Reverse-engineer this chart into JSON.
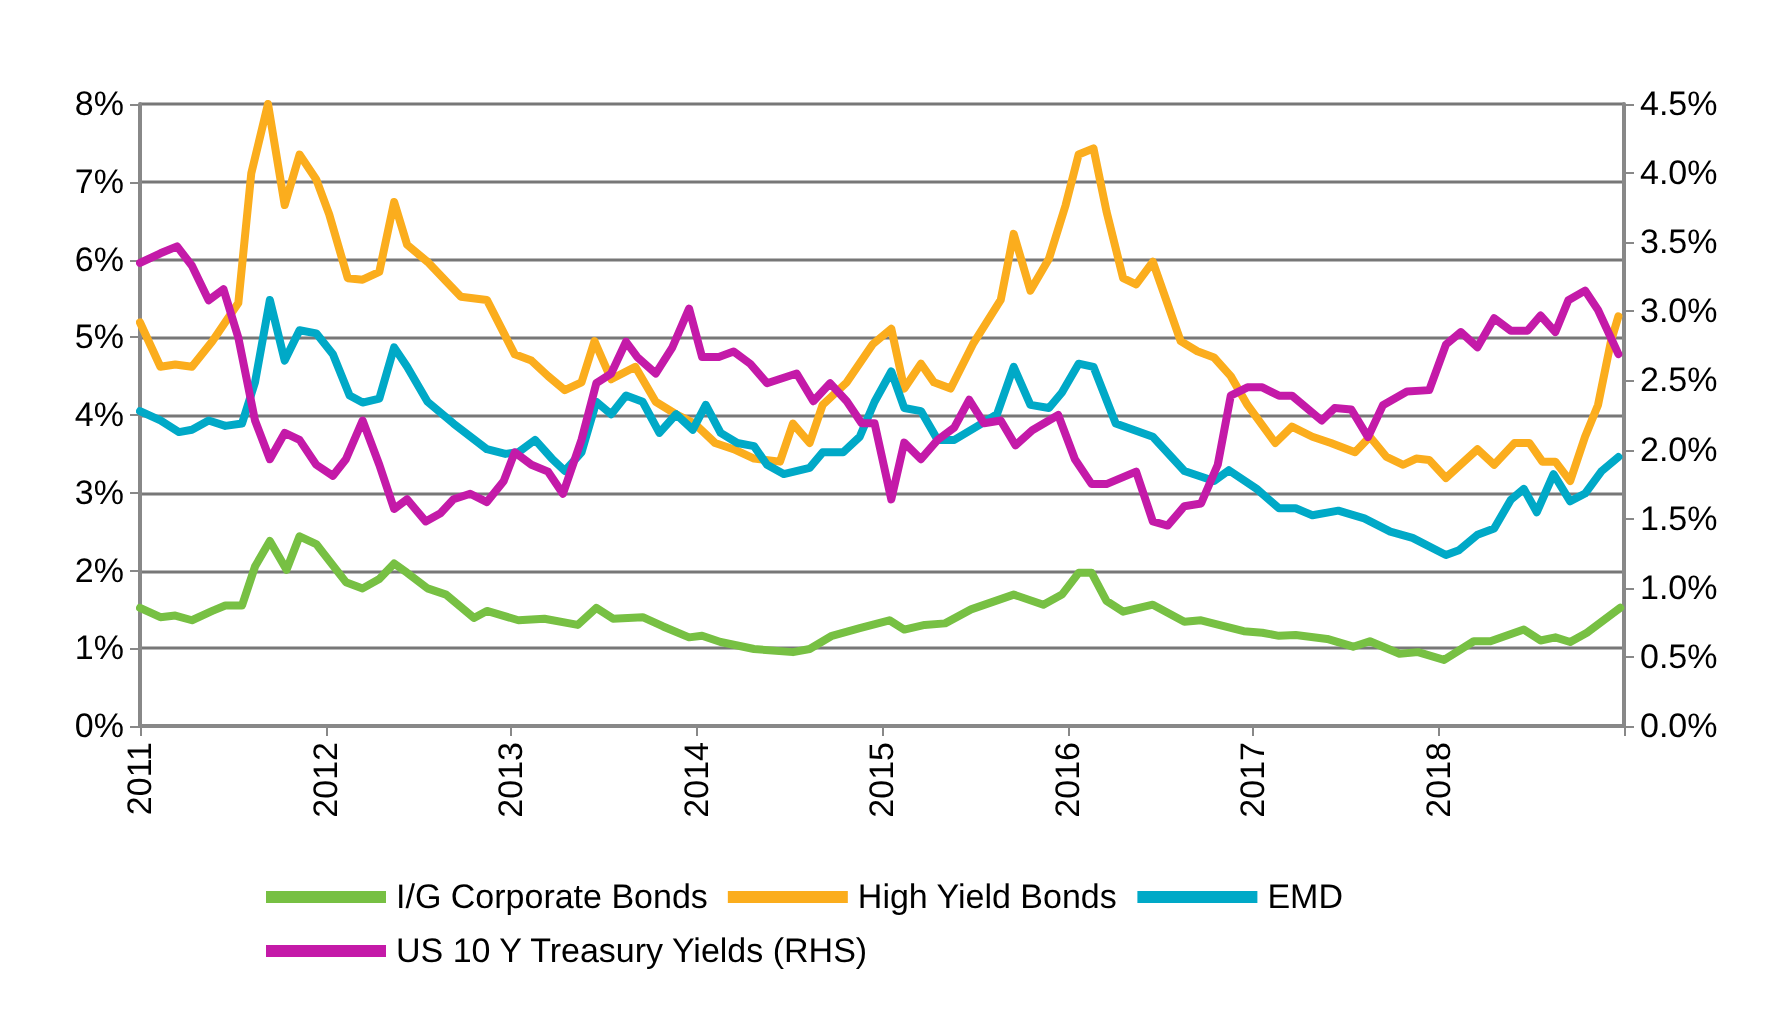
{
  "chart_data": {
    "type": "line",
    "xlim": [
      2011,
      2019
    ],
    "xticks": [
      2011,
      2012,
      2013,
      2014,
      2015,
      2016,
      2017,
      2018,
      {
        "value": 2019,
        "label": null
      }
    ],
    "ylim": [
      0,
      8
    ],
    "yticks": [
      {
        "value": 0,
        "label": "0%"
      },
      {
        "value": 1,
        "label": "1%"
      },
      {
        "value": 2,
        "label": "2%"
      },
      {
        "value": 3,
        "label": "3%"
      },
      {
        "value": 4,
        "label": "4%"
      },
      {
        "value": 5,
        "label": "5%"
      },
      {
        "value": 6,
        "label": "6%"
      },
      {
        "value": 7,
        "label": "7%"
      },
      {
        "value": 8,
        "label": "8%"
      }
    ],
    "y2lim": [
      0,
      4.5
    ],
    "y2ticks": [
      {
        "value": 0,
        "label": "0.0%"
      },
      {
        "value": 0.5,
        "label": "0.5%"
      },
      {
        "value": 1,
        "label": "1.0%"
      },
      {
        "value": 1.5,
        "label": "1.5%"
      },
      {
        "value": 2,
        "label": "2.0%"
      },
      {
        "value": 2.5,
        "label": "2.5%"
      },
      {
        "value": 3,
        "label": "3.0%"
      },
      {
        "value": 3.5,
        "label": "3.5%"
      },
      {
        "value": 4,
        "label": "4.0%"
      },
      {
        "value": 4.5,
        "label": "4.5%"
      }
    ],
    "grid": "y",
    "legend": "bottom",
    "line_style": "solid",
    "marker": "none",
    "series": [
      {
        "name": "I/G Corporate Bonds",
        "color": "#77c043",
        "x": [
          2011.0,
          2011.11,
          2011.19,
          2011.28,
          2011.39,
          2011.46,
          2011.55,
          2011.62,
          2011.7,
          2011.79,
          2011.86,
          2011.95,
          2012.11,
          2012.2,
          2012.29,
          2012.37,
          2012.44,
          2012.55,
          2012.65,
          2012.8,
          2012.87,
          2013.04,
          2013.18,
          2013.36,
          2013.46,
          2013.55,
          2013.71,
          2013.82,
          2013.96,
          2014.03,
          2014.13,
          2014.31,
          2014.52,
          2014.61,
          2014.73,
          2014.88,
          2015.04,
          2015.12,
          2015.23,
          2015.34,
          2015.48,
          2015.71,
          2015.87,
          2015.97,
          2016.06,
          2016.13,
          2016.21,
          2016.3,
          2016.46,
          2016.63,
          2016.72,
          2016.95,
          2017.05,
          2017.14,
          2017.23,
          2017.4,
          2017.54,
          2017.63,
          2017.79,
          2017.89,
          2018.03,
          2018.19,
          2018.28,
          2018.46,
          2018.55,
          2018.63,
          2018.71,
          2018.8,
          2018.89,
          2018.98
        ],
        "values": [
          1.52,
          1.4,
          1.42,
          1.36,
          1.48,
          1.55,
          1.55,
          2.05,
          2.38,
          2.01,
          2.44,
          2.34,
          1.85,
          1.77,
          1.89,
          2.09,
          1.97,
          1.77,
          1.69,
          1.39,
          1.48,
          1.36,
          1.38,
          1.3,
          1.52,
          1.38,
          1.4,
          1.28,
          1.14,
          1.16,
          1.08,
          0.99,
          0.95,
          0.99,
          1.16,
          1.26,
          1.36,
          1.24,
          1.3,
          1.32,
          1.5,
          1.69,
          1.56,
          1.69,
          1.97,
          1.97,
          1.61,
          1.47,
          1.56,
          1.34,
          1.36,
          1.22,
          1.2,
          1.16,
          1.17,
          1.12,
          1.02,
          1.09,
          0.93,
          0.95,
          0.85,
          1.09,
          1.09,
          1.24,
          1.1,
          1.14,
          1.08,
          1.2,
          1.36,
          1.52
        ]
      },
      {
        "name": "High Yield Bonds",
        "color": "#fbad1d",
        "x": [
          2011.0,
          2011.11,
          2011.19,
          2011.28,
          2011.39,
          2011.53,
          2011.6,
          2011.69,
          2011.78,
          2011.86,
          2011.95,
          2012.02,
          2012.12,
          2012.2,
          2012.29,
          2012.37,
          2012.44,
          2012.55,
          2012.65,
          2012.73,
          2012.87,
          2013.02,
          2013.11,
          2013.2,
          2013.29,
          2013.38,
          2013.45,
          2013.54,
          2013.67,
          2013.78,
          2013.89,
          2013.99,
          2014.1,
          2014.2,
          2014.31,
          2014.45,
          2014.52,
          2014.61,
          2014.68,
          2014.81,
          2014.95,
          2015.05,
          2015.12,
          2015.21,
          2015.28,
          2015.37,
          2015.49,
          2015.64,
          2015.71,
          2015.8,
          2015.9,
          2015.99,
          2016.06,
          2016.14,
          2016.21,
          2016.3,
          2016.37,
          2016.46,
          2016.61,
          2016.7,
          2016.79,
          2016.88,
          2016.97,
          2017.12,
          2017.21,
          2017.32,
          2017.42,
          2017.55,
          2017.63,
          2017.72,
          2017.81,
          2017.88,
          2017.95,
          2018.04,
          2018.21,
          2018.3,
          2018.41,
          2018.49,
          2018.56,
          2018.63,
          2018.71,
          2018.79,
          2018.86,
          2018.93,
          2018.97
        ],
        "values": [
          5.19,
          4.62,
          4.65,
          4.62,
          4.95,
          5.44,
          7.11,
          8.0,
          6.7,
          7.35,
          7.03,
          6.58,
          5.76,
          5.74,
          5.84,
          6.74,
          6.19,
          5.97,
          5.72,
          5.52,
          5.48,
          4.78,
          4.7,
          4.5,
          4.32,
          4.42,
          4.95,
          4.46,
          4.62,
          4.17,
          4.01,
          3.89,
          3.64,
          3.56,
          3.44,
          3.4,
          3.89,
          3.64,
          4.13,
          4.42,
          4.91,
          5.11,
          4.34,
          4.66,
          4.42,
          4.34,
          4.91,
          5.48,
          6.33,
          5.6,
          6.01,
          6.7,
          7.35,
          7.43,
          6.62,
          5.76,
          5.68,
          5.97,
          4.95,
          4.82,
          4.74,
          4.5,
          4.13,
          3.64,
          3.85,
          3.72,
          3.64,
          3.52,
          3.72,
          3.46,
          3.36,
          3.44,
          3.42,
          3.19,
          3.56,
          3.36,
          3.64,
          3.64,
          3.4,
          3.4,
          3.15,
          3.72,
          4.13,
          4.95,
          5.27
        ]
      },
      {
        "name": "EMD",
        "color": "#00a9c7",
        "x": [
          2011.0,
          2011.11,
          2011.21,
          2011.28,
          2011.37,
          2011.46,
          2011.55,
          2011.62,
          2011.7,
          2011.78,
          2011.86,
          2011.95,
          2012.04,
          2012.13,
          2012.2,
          2012.29,
          2012.37,
          2012.44,
          2012.55,
          2012.69,
          2012.87,
          2012.97,
          2013.04,
          2013.13,
          2013.22,
          2013.29,
          2013.38,
          2013.46,
          2013.54,
          2013.62,
          2013.71,
          2013.8,
          2013.89,
          2013.98,
          2014.05,
          2014.13,
          2014.22,
          2014.31,
          2014.38,
          2014.47,
          2014.61,
          2014.68,
          2014.79,
          2014.88,
          2014.96,
          2015.05,
          2015.12,
          2015.21,
          2015.3,
          2015.39,
          2015.51,
          2015.62,
          2015.71,
          2015.8,
          2015.9,
          2015.97,
          2016.06,
          2016.14,
          2016.26,
          2016.46,
          2016.63,
          2016.79,
          2016.87,
          2017.02,
          2017.14,
          2017.23,
          2017.32,
          2017.46,
          2017.6,
          2017.74,
          2017.86,
          2018.04,
          2018.11,
          2018.21,
          2018.3,
          2018.39,
          2018.46,
          2018.53,
          2018.62,
          2018.71,
          2018.79,
          2018.88,
          2018.97
        ],
        "values": [
          4.05,
          3.93,
          3.78,
          3.81,
          3.93,
          3.86,
          3.89,
          4.42,
          5.48,
          4.7,
          5.09,
          5.05,
          4.78,
          4.25,
          4.16,
          4.21,
          4.87,
          4.62,
          4.17,
          3.89,
          3.56,
          3.5,
          3.52,
          3.68,
          3.44,
          3.28,
          3.52,
          4.17,
          4.01,
          4.25,
          4.17,
          3.77,
          4.01,
          3.81,
          4.13,
          3.77,
          3.64,
          3.6,
          3.36,
          3.24,
          3.32,
          3.52,
          3.52,
          3.72,
          4.17,
          4.56,
          4.09,
          4.05,
          3.68,
          3.68,
          3.85,
          4.01,
          4.62,
          4.13,
          4.09,
          4.29,
          4.66,
          4.62,
          3.89,
          3.72,
          3.28,
          3.15,
          3.29,
          3.05,
          2.8,
          2.8,
          2.71,
          2.77,
          2.67,
          2.5,
          2.42,
          2.2,
          2.26,
          2.46,
          2.54,
          2.91,
          3.05,
          2.75,
          3.24,
          2.89,
          2.99,
          3.28,
          3.46
        ]
      },
      {
        "name": "US 10 Y Treasury Yields (RHS)",
        "color": "#c41aa8",
        "axis": "y2",
        "x": [
          2011.0,
          2011.11,
          2011.2,
          2011.28,
          2011.37,
          2011.45,
          2011.53,
          2011.62,
          2011.7,
          2011.78,
          2011.86,
          2011.95,
          2012.04,
          2012.11,
          2012.2,
          2012.29,
          2012.37,
          2012.44,
          2012.54,
          2012.62,
          2012.69,
          2012.78,
          2012.87,
          2012.96,
          2013.02,
          2013.11,
          2013.2,
          2013.28,
          2013.38,
          2013.46,
          2013.54,
          2013.62,
          2013.68,
          2013.78,
          2013.87,
          2013.96,
          2014.03,
          2014.12,
          2014.2,
          2014.29,
          2014.38,
          2014.54,
          2014.63,
          2014.72,
          2014.81,
          2014.89,
          2014.96,
          2015.05,
          2015.12,
          2015.21,
          2015.3,
          2015.39,
          2015.47,
          2015.55,
          2015.64,
          2015.72,
          2015.81,
          2015.95,
          2016.04,
          2016.13,
          2016.21,
          2016.37,
          2016.46,
          2016.54,
          2016.63,
          2016.72,
          2016.81,
          2016.88,
          2016.97,
          2017.05,
          2017.14,
          2017.21,
          2017.37,
          2017.44,
          2017.53,
          2017.62,
          2017.7,
          2017.83,
          2017.95,
          2018.04,
          2018.12,
          2018.21,
          2018.3,
          2018.39,
          2018.48,
          2018.55,
          2018.63,
          2018.7,
          2018.79,
          2018.86,
          2018.97
        ],
        "values": [
          3.35,
          3.42,
          3.47,
          3.33,
          3.08,
          3.16,
          2.81,
          2.21,
          1.93,
          2.12,
          2.07,
          1.89,
          1.81,
          1.93,
          2.21,
          1.89,
          1.57,
          1.64,
          1.48,
          1.54,
          1.64,
          1.68,
          1.62,
          1.77,
          1.98,
          1.89,
          1.84,
          1.68,
          2.07,
          2.48,
          2.55,
          2.78,
          2.67,
          2.55,
          2.74,
          3.02,
          2.67,
          2.67,
          2.71,
          2.62,
          2.48,
          2.55,
          2.35,
          2.48,
          2.35,
          2.19,
          2.19,
          1.64,
          2.05,
          1.93,
          2.07,
          2.16,
          2.36,
          2.19,
          2.21,
          2.03,
          2.14,
          2.25,
          1.93,
          1.75,
          1.75,
          1.84,
          1.48,
          1.45,
          1.59,
          1.61,
          1.89,
          2.39,
          2.45,
          2.45,
          2.39,
          2.39,
          2.21,
          2.3,
          2.29,
          2.09,
          2.32,
          2.42,
          2.43,
          2.76,
          2.85,
          2.74,
          2.95,
          2.86,
          2.86,
          2.97,
          2.85,
          3.08,
          3.15,
          3.01,
          2.69
        ]
      }
    ]
  }
}
